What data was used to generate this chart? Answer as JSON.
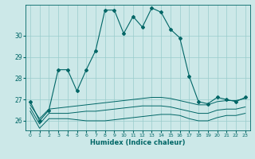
{
  "xlabel": "Humidex (Indice chaleur)",
  "x": [
    0,
    1,
    2,
    3,
    4,
    5,
    6,
    7,
    8,
    9,
    10,
    11,
    12,
    13,
    14,
    15,
    16,
    17,
    18,
    19,
    20,
    21,
    22,
    23
  ],
  "line_main": [
    26.9,
    26.0,
    26.5,
    28.4,
    28.4,
    27.4,
    28.4,
    29.3,
    31.2,
    31.2,
    30.1,
    30.9,
    30.4,
    31.3,
    31.1,
    30.3,
    29.9,
    28.1,
    26.9,
    26.8,
    27.1,
    27.0,
    26.9,
    27.1
  ],
  "line_high": [
    26.75,
    26.1,
    26.55,
    26.6,
    26.65,
    26.7,
    26.75,
    26.8,
    26.85,
    26.9,
    26.95,
    27.0,
    27.05,
    27.1,
    27.1,
    27.05,
    26.95,
    26.85,
    26.75,
    26.75,
    26.9,
    26.95,
    26.95,
    27.05
  ],
  "line_mid": [
    26.6,
    25.85,
    26.35,
    26.35,
    26.35,
    26.4,
    26.45,
    26.45,
    26.5,
    26.55,
    26.6,
    26.65,
    26.7,
    26.7,
    26.7,
    26.65,
    26.55,
    26.45,
    26.35,
    26.35,
    26.5,
    26.55,
    26.55,
    26.65
  ],
  "line_low": [
    26.45,
    25.65,
    26.1,
    26.1,
    26.1,
    26.05,
    26.0,
    26.0,
    26.0,
    26.05,
    26.1,
    26.15,
    26.2,
    26.25,
    26.3,
    26.3,
    26.25,
    26.1,
    26.0,
    26.0,
    26.15,
    26.25,
    26.25,
    26.35
  ],
  "bg_color": "#cce8e8",
  "grid_color": "#99cccc",
  "line_color": "#006666",
  "ylim": [
    25.55,
    31.45
  ],
  "yticks": [
    26,
    27,
    28,
    29,
    30
  ],
  "xlim": [
    -0.5,
    23.5
  ],
  "xticks": [
    0,
    1,
    2,
    3,
    4,
    5,
    6,
    7,
    8,
    9,
    10,
    11,
    12,
    13,
    14,
    15,
    16,
    17,
    18,
    19,
    20,
    21,
    22,
    23
  ]
}
